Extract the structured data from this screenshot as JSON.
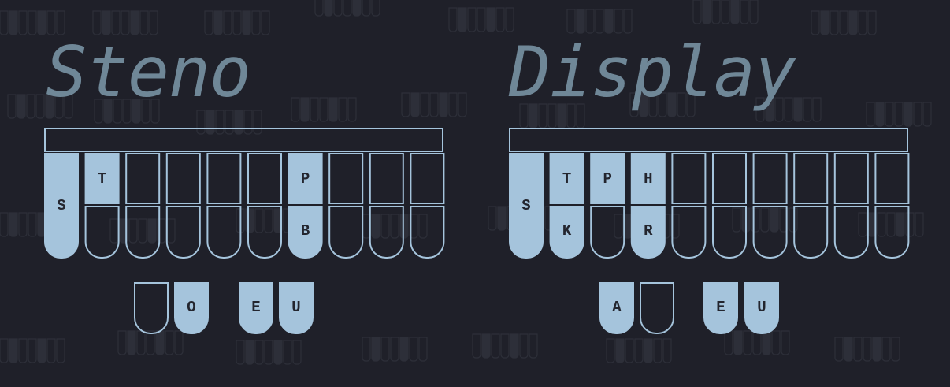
{
  "colors": {
    "background": "#1f2029",
    "outline": "#a5c4dc",
    "pressed": "#a5c4dc",
    "title": "#6f8797",
    "letter": "#23252e"
  },
  "diagrams": [
    {
      "title": "Steno",
      "left_keys": [
        {
          "label": "S",
          "pressed": true
        },
        {
          "label": "T",
          "pressed": true
        },
        {
          "label": "",
          "pressed": false
        },
        {
          "label": "",
          "pressed": false
        },
        {
          "label": "",
          "pressed": false
        },
        {
          "label": "",
          "pressed": false
        },
        {
          "label": "P",
          "pressed": true
        },
        {
          "label": "",
          "pressed": false
        },
        {
          "label": "",
          "pressed": false
        },
        {
          "label": "",
          "pressed": false
        }
      ],
      "lower_keys": [
        {
          "label": "",
          "pressed": false
        },
        {
          "label": "",
          "pressed": false
        },
        {
          "label": "",
          "pressed": false
        },
        {
          "label": "",
          "pressed": false
        },
        {
          "label": "",
          "pressed": false
        },
        {
          "label": "B",
          "pressed": true
        },
        {
          "label": "",
          "pressed": false
        },
        {
          "label": "",
          "pressed": false
        },
        {
          "label": "",
          "pressed": false
        }
      ],
      "vowels": [
        {
          "label": "",
          "pressed": false
        },
        {
          "label": "O",
          "pressed": true
        },
        {
          "label": "E",
          "pressed": true
        },
        {
          "label": "U",
          "pressed": true
        }
      ]
    },
    {
      "title": "Display",
      "left_keys": [
        {
          "label": "S",
          "pressed": true
        },
        {
          "label": "T",
          "pressed": true
        },
        {
          "label": "P",
          "pressed": true
        },
        {
          "label": "H",
          "pressed": true
        },
        {
          "label": "",
          "pressed": false
        },
        {
          "label": "",
          "pressed": false
        },
        {
          "label": "",
          "pressed": false
        },
        {
          "label": "",
          "pressed": false
        },
        {
          "label": "",
          "pressed": false
        },
        {
          "label": "",
          "pressed": false
        }
      ],
      "lower_keys": [
        {
          "label": "K",
          "pressed": true
        },
        {
          "label": "",
          "pressed": false
        },
        {
          "label": "R",
          "pressed": true
        },
        {
          "label": "",
          "pressed": false
        },
        {
          "label": "",
          "pressed": false
        },
        {
          "label": "",
          "pressed": false
        },
        {
          "label": "",
          "pressed": false
        },
        {
          "label": "",
          "pressed": false
        },
        {
          "label": "",
          "pressed": false
        }
      ],
      "vowels": [
        {
          "label": "A",
          "pressed": true
        },
        {
          "label": "",
          "pressed": false
        },
        {
          "label": "E",
          "pressed": true
        },
        {
          "label": "U",
          "pressed": true
        }
      ]
    }
  ]
}
